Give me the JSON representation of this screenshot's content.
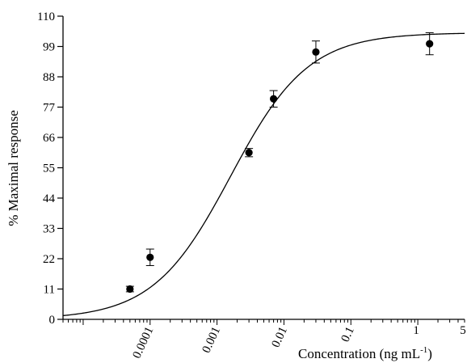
{
  "chart_data": {
    "type": "scatter",
    "xlabel": "Concentration (ng mL",
    "xlabel_sup": "-1",
    "xlabel_close": ")",
    "ylabel": "% Maximal response",
    "x_scale": "log",
    "xlim": [
      5e-06,
      5
    ],
    "ylim": [
      0,
      110
    ],
    "x_ticks": [
      {
        "value": 0.0001,
        "label": "0.0001"
      },
      {
        "value": 0.001,
        "label": "0.001"
      },
      {
        "value": 0.01,
        "label": "0.01"
      },
      {
        "value": 0.1,
        "label": "0.1"
      },
      {
        "value": 1,
        "label": "1"
      },
      {
        "value": 5,
        "label": "5"
      }
    ],
    "y_ticks": [
      0,
      11,
      22,
      33,
      44,
      55,
      66,
      77,
      88,
      99,
      110
    ],
    "grid": false,
    "points": [
      {
        "x": 5e-05,
        "y": 11,
        "err": 1
      },
      {
        "x": 0.0001,
        "y": 22.5,
        "err": 3
      },
      {
        "x": 0.003,
        "y": 60.5,
        "err": 1.5
      },
      {
        "x": 0.007,
        "y": 80,
        "err": 3
      },
      {
        "x": 0.03,
        "y": 97,
        "err": 4
      },
      {
        "x": 1.5,
        "y": 100,
        "err": 4
      }
    ],
    "fit_curve": {
      "type": "sigmoid",
      "bottom": 0,
      "top": 104,
      "ec50": 0.0016,
      "hill": 0.75
    },
    "colors": {
      "axis": "#000000",
      "marker": "#000000",
      "curve": "#000000"
    }
  }
}
